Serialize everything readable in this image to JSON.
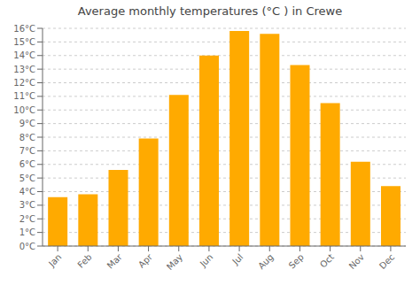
{
  "chart_data": {
    "type": "bar",
    "title": "Average monthly temperatures (°C ) in Crewe",
    "categories": [
      "Jan",
      "Feb",
      "Mar",
      "Apr",
      "May",
      "Jun",
      "Jul",
      "Aug",
      "Sep",
      "Oct",
      "Nov",
      "Dec"
    ],
    "values": [
      3.6,
      3.8,
      5.6,
      7.9,
      11.1,
      14.0,
      15.8,
      15.6,
      13.3,
      10.5,
      6.2,
      4.4
    ],
    "color": "#FFAA00",
    "ylim": [
      0,
      16
    ],
    "yticks": [
      {
        "value": 0,
        "label": "0°C"
      },
      {
        "value": 1,
        "label": "1°C"
      },
      {
        "value": 2,
        "label": "2°C"
      },
      {
        "value": 3,
        "label": "3°C"
      },
      {
        "value": 4,
        "label": "4°C"
      },
      {
        "value": 5,
        "label": "5°C"
      },
      {
        "value": 6,
        "label": "6°C"
      },
      {
        "value": 7,
        "label": "7°C"
      },
      {
        "value": 8,
        "label": "8°C"
      },
      {
        "value": 9,
        "label": "9°C"
      },
      {
        "value": 10,
        "label": "10°C"
      },
      {
        "value": 11,
        "label": "11°C"
      },
      {
        "value": 12,
        "label": "12°C"
      },
      {
        "value": 13,
        "label": "13°C"
      },
      {
        "value": 14,
        "label": "14°C"
      },
      {
        "value": 15,
        "label": "15°C"
      },
      {
        "value": 16,
        "label": "16°C"
      }
    ],
    "grid": true
  }
}
